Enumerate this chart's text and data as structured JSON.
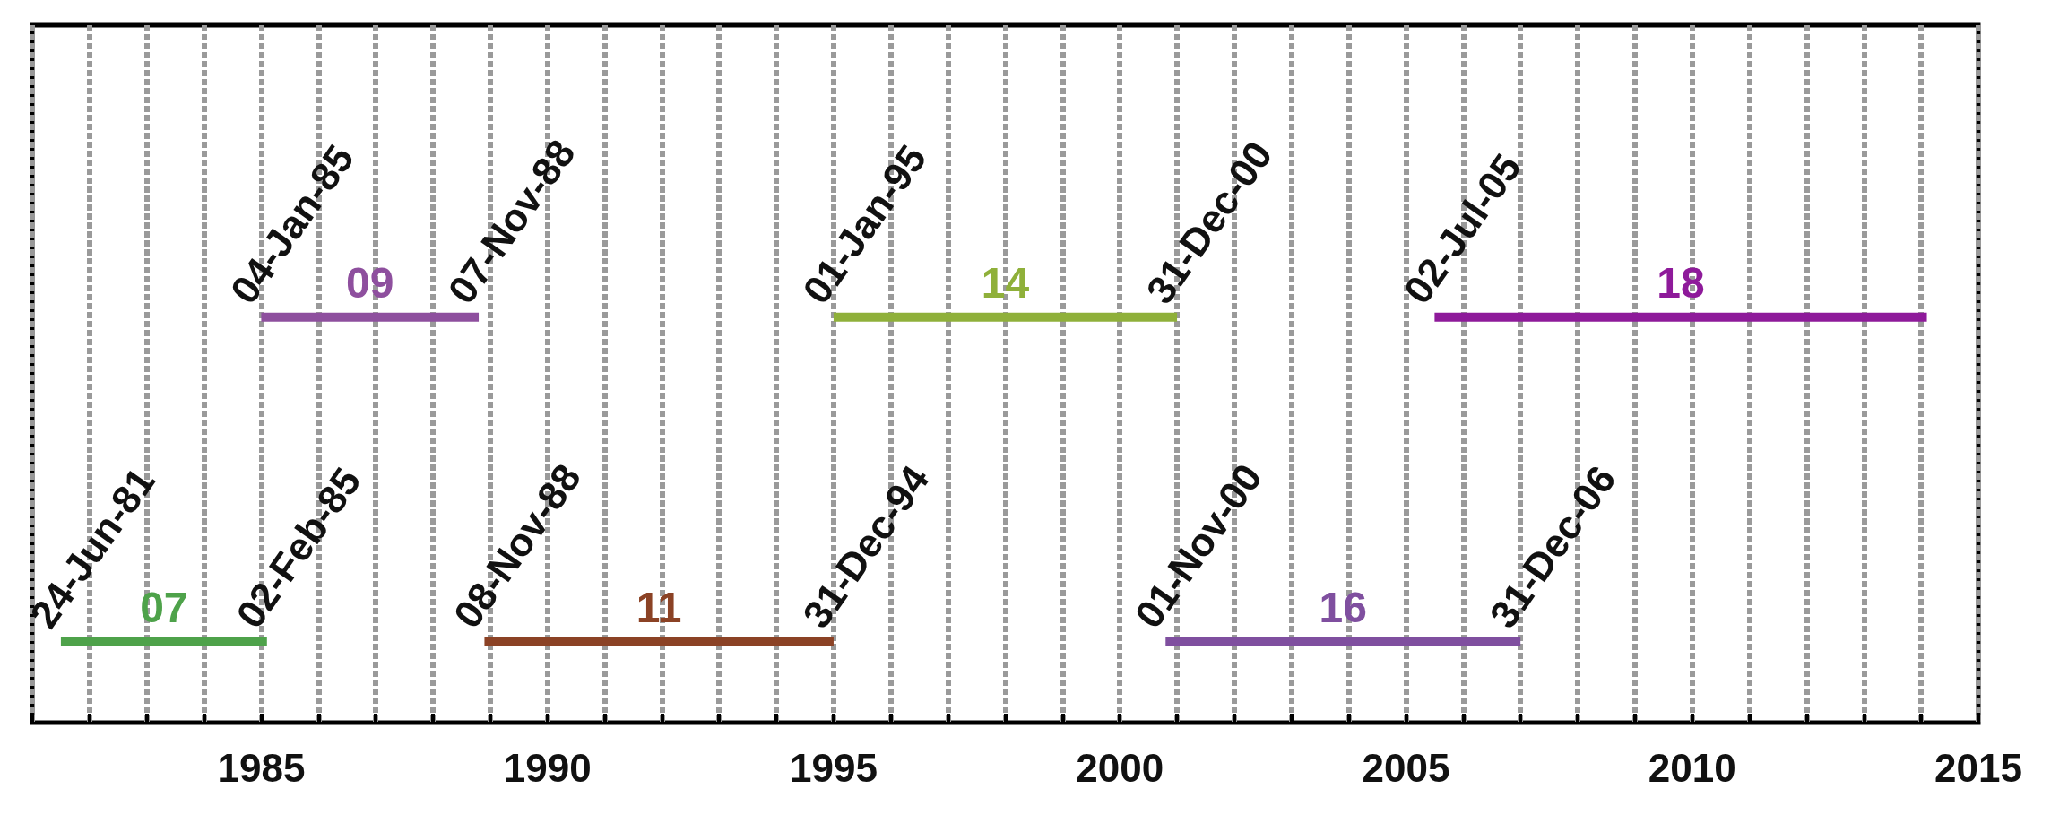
{
  "chart_data": {
    "type": "bar",
    "orientation": "horizontal",
    "categories": [
      null,
      null
    ],
    "series": [
      {
        "name": "07",
        "color": "#4ea24a",
        "base": [
          null,
          1981.5
        ],
        "values": [
          null,
          3.6
        ]
      },
      {
        "name": "09",
        "color": "#8e4f9e",
        "base": [
          1985.0,
          null
        ],
        "values": [
          3.8,
          null
        ]
      },
      {
        "name": "11",
        "color": "#8b4225",
        "base": [
          null,
          1988.9
        ],
        "values": [
          null,
          6.1
        ]
      },
      {
        "name": "14",
        "color": "#8fb03a",
        "base": [
          1995.0,
          null
        ],
        "values": [
          6.0,
          null
        ]
      },
      {
        "name": "16",
        "color": "#7f4f9f",
        "base": [
          null,
          2000.8
        ],
        "values": [
          null,
          6.2
        ]
      },
      {
        "name": "18",
        "color": "#8e1a9a",
        "base": [
          2005.5,
          null
        ],
        "values": [
          8.6,
          null
        ]
      }
    ],
    "xlim": [
      1981,
      2015
    ],
    "xticks": [
      {
        "value": 1981,
        "label": null
      },
      {
        "value": 1982,
        "label": null
      },
      {
        "value": 1983,
        "label": null
      },
      {
        "value": 1984,
        "label": null
      },
      1985,
      {
        "value": 1986,
        "label": null
      },
      {
        "value": 1987,
        "label": null
      },
      {
        "value": 1988,
        "label": null
      },
      {
        "value": 1989,
        "label": null
      },
      1990,
      {
        "value": 1991,
        "label": null
      },
      {
        "value": 1992,
        "label": null
      },
      {
        "value": 1993,
        "label": null
      },
      {
        "value": 1994,
        "label": null
      },
      1995,
      {
        "value": 1996,
        "label": null
      },
      {
        "value": 1997,
        "label": null
      },
      {
        "value": 1998,
        "label": null
      },
      {
        "value": 1999,
        "label": null
      },
      2000,
      {
        "value": 2001,
        "label": null
      },
      {
        "value": 2002,
        "label": null
      },
      {
        "value": 2003,
        "label": null
      },
      {
        "value": 2004,
        "label": null
      },
      2005,
      {
        "value": 2006,
        "label": null
      },
      {
        "value": 2007,
        "label": null
      },
      {
        "value": 2008,
        "label": null
      },
      {
        "value": 2009,
        "label": null
      },
      2010,
      {
        "value": 2011,
        "label": null
      },
      {
        "value": 2012,
        "label": null
      },
      {
        "value": 2013,
        "label": null
      },
      {
        "value": 2014,
        "label": null
      },
      2015
    ],
    "grid": "x",
    "annotations": [
      "24-Jun-81",
      "02-Feb-85",
      "04-Jan-85",
      "07-Nov-88",
      "08-Nov-88",
      "31-Dec-94",
      "01-Jan-95",
      "31-Dec-00",
      "01-Nov-00",
      "31-Dec-06",
      "02-Jul-05"
    ]
  }
}
